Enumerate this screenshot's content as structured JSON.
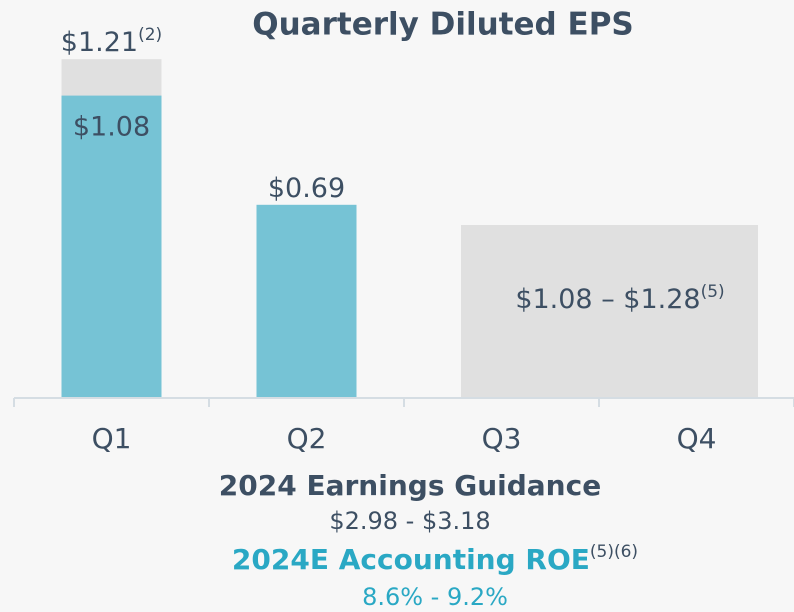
{
  "chart_data": {
    "type": "bar",
    "title": "Quarterly Diluted EPS",
    "categories": [
      "Q1",
      "Q2",
      "Q3",
      "Q4"
    ],
    "series": [
      {
        "color": "#e0e0e0",
        "values": [
          1.21,
          null,
          null,
          null
        ],
        "value_labels": [
          "$1.21",
          null,
          null,
          null
        ],
        "value_notes": [
          "(2)",
          null,
          null,
          null
        ]
      },
      {
        "color": "#76c3d5",
        "values": [
          1.08,
          0.69,
          null,
          null
        ],
        "value_labels": [
          "$1.08",
          "$0.69",
          null,
          null
        ]
      }
    ],
    "ylim": [
      0,
      1.4
    ],
    "annotations": [
      {
        "text": "$1.08 – $1.28",
        "note": "(5)"
      }
    ],
    "footer": {
      "guidance_title": "2024 Earnings Guidance",
      "guidance_range": "$2.98 - $3.18",
      "roe_title": "2024E Accounting ROE",
      "roe_note": "(5)(6)",
      "roe_range": "8.6% - 9.2%"
    }
  }
}
